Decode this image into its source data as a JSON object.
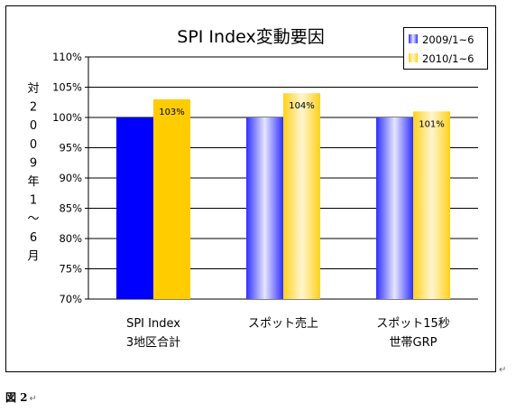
{
  "chart_data": {
    "type": "bar",
    "title": "SPI Index変動要因",
    "ylabel": "対2009年1~6月",
    "xlabel": "",
    "categories": [
      [
        "SPI Index",
        "3地区合計"
      ],
      [
        "スポット売上"
      ],
      [
        "スポット15秒",
        "世帯GRP"
      ]
    ],
    "series": [
      {
        "name": "2009/1~6",
        "values": [
          100,
          100,
          100
        ],
        "color": "#0000ff"
      },
      {
        "name": "2010/1~6",
        "values": [
          103,
          104,
          101
        ],
        "color": "#ffcc00"
      }
    ],
    "data_labels": [
      "103%",
      "104%",
      "101%"
    ],
    "ylim": [
      70,
      110
    ],
    "yticks": [
      70,
      75,
      80,
      85,
      90,
      95,
      100,
      105,
      110
    ],
    "ytick_labels": [
      "70%",
      "75%",
      "80%",
      "85%",
      "90%",
      "95%",
      "100%",
      "105%",
      "110%"
    ],
    "grid": true,
    "legend_position": "top-right"
  },
  "caption": {
    "label": "図 2",
    "return_mark": "↵"
  },
  "chart_return_mark": "↵"
}
